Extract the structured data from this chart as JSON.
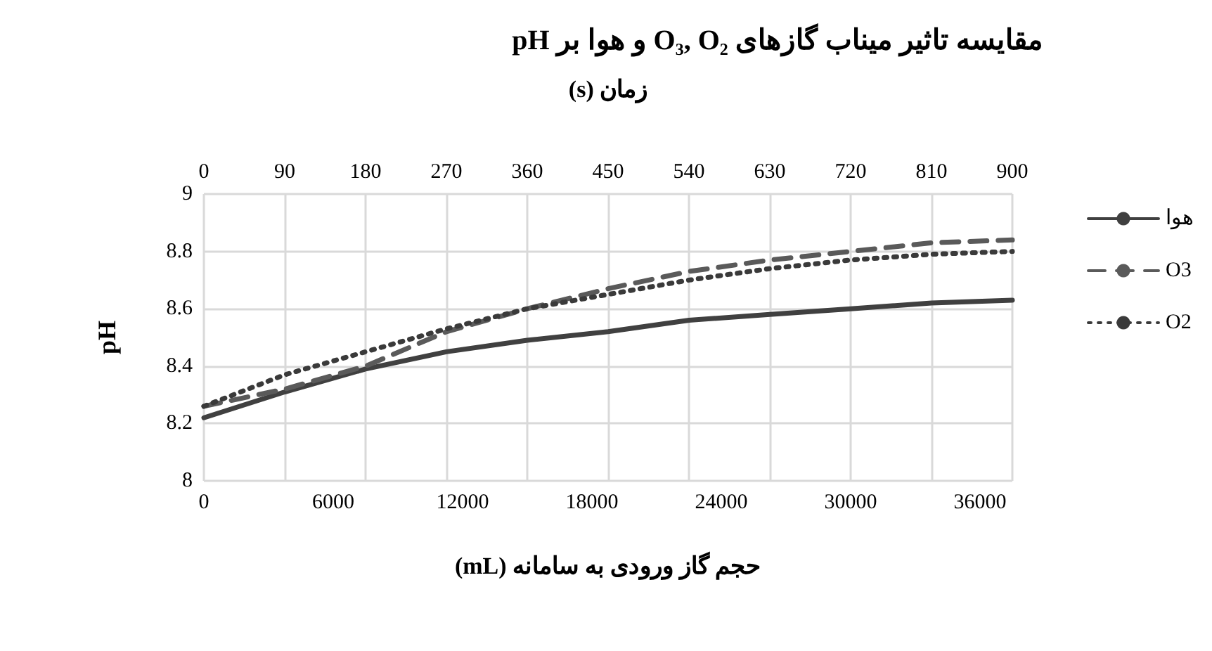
{
  "chart_data": {
    "type": "line",
    "title": "مقایسه تاثیر میناب گازهای O₃, O₂ و هوا بر pH",
    "xlabel": "حجم گاز ورودی به سامانه (mL)",
    "x2label": "زمان (s)",
    "ylabel": "pH",
    "x": [
      0,
      3750,
      7500,
      11250,
      15000,
      18750,
      22500,
      26250,
      30000,
      33750,
      37500
    ],
    "series": [
      {
        "name": "هوا",
        "color": "#404040",
        "line_style": "solid",
        "values": [
          8.22,
          8.31,
          8.39,
          8.45,
          8.49,
          8.52,
          8.56,
          8.58,
          8.6,
          8.62,
          8.63
        ]
      },
      {
        "name": "O3",
        "color": "#5a5a5a",
        "line_style": "dashed",
        "values": [
          8.26,
          8.32,
          8.4,
          8.52,
          8.6,
          8.67,
          8.73,
          8.77,
          8.8,
          8.83,
          8.84
        ]
      },
      {
        "name": "O2",
        "color": "#3a3a3a",
        "line_style": "dotted",
        "values": [
          8.26,
          8.37,
          8.45,
          8.53,
          8.6,
          8.65,
          8.7,
          8.74,
          8.77,
          8.79,
          8.8
        ]
      }
    ],
    "xlim": [
      0,
      37500
    ],
    "xticks": [
      0,
      6000,
      12000,
      18000,
      24000,
      30000,
      36000
    ],
    "x2lim": [
      0,
      900
    ],
    "x2ticks": [
      0,
      90,
      180,
      270,
      360,
      450,
      540,
      630,
      720,
      810,
      900
    ],
    "ylim": [
      8,
      9
    ],
    "yticks": [
      8,
      8.2,
      8.4,
      8.6,
      8.8,
      9
    ],
    "grid": true,
    "legend": "right",
    "marker": "none"
  }
}
